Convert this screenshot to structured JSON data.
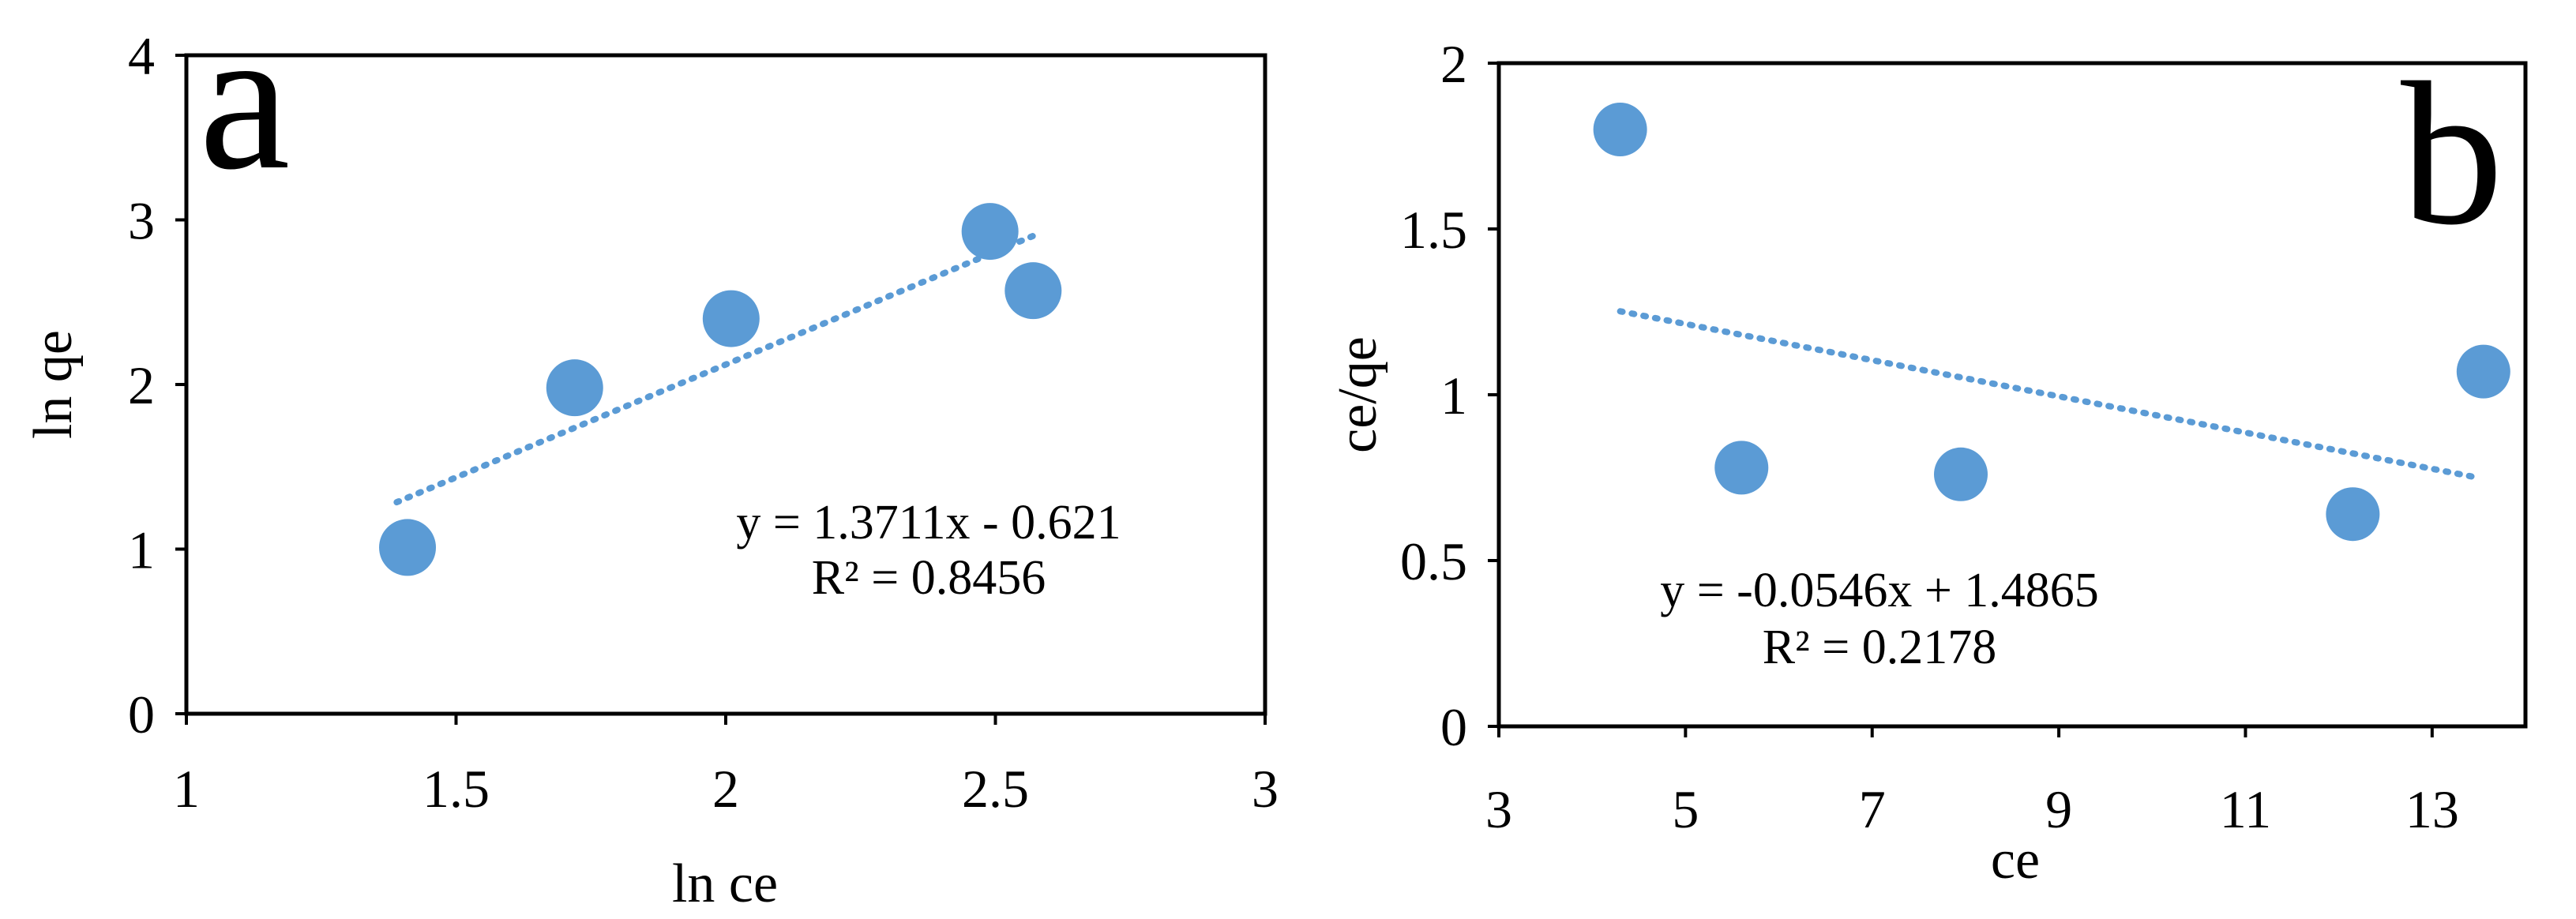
{
  "chart_data": [
    {
      "panel_label": "a",
      "type": "scatter",
      "xlabel": "ln ce",
      "ylabel": "ln qe",
      "xlim": [
        1,
        3
      ],
      "ylim": [
        0,
        4
      ],
      "x_ticks": [
        "1",
        "1.5",
        "2",
        "2.5",
        "3"
      ],
      "y_ticks": [
        "0",
        "1",
        "2",
        "3",
        "4"
      ],
      "grid": false,
      "points": [
        {
          "x": 1.41,
          "y": 1.01
        },
        {
          "x": 1.72,
          "y": 1.98
        },
        {
          "x": 2.01,
          "y": 2.4
        },
        {
          "x": 2.49,
          "y": 2.93
        },
        {
          "x": 2.57,
          "y": 2.57
        }
      ],
      "trendline": {
        "style": "dotted",
        "slope": 1.3711,
        "intercept": -0.621,
        "x_range": [
          1.39,
          2.57
        ]
      },
      "equation": "y = 1.3711x - 0.621",
      "r_squared": "R² = 0.8456",
      "marker_color": "#5B9BD5"
    },
    {
      "panel_label": "b",
      "type": "scatter",
      "xlabel": "ce",
      "ylabel": "ce/qe",
      "xlim": [
        3,
        14
      ],
      "ylim": [
        0,
        2
      ],
      "x_ticks": [
        "3",
        "5",
        "7",
        "9",
        "11",
        "13"
      ],
      "y_ticks": [
        "0",
        "0.5",
        "1",
        "1.5",
        "2"
      ],
      "grid": false,
      "points": [
        {
          "x": 4.3,
          "y": 1.8
        },
        {
          "x": 5.6,
          "y": 0.78
        },
        {
          "x": 7.95,
          "y": 0.76
        },
        {
          "x": 12.15,
          "y": 0.64
        },
        {
          "x": 13.55,
          "y": 1.07
        }
      ],
      "trendline": {
        "style": "dotted",
        "slope": -0.0546,
        "intercept": 1.4865,
        "x_range": [
          4.3,
          13.5
        ]
      },
      "equation": "y = -0.0546x + 1.4865",
      "r_squared": "R² = 0.2178",
      "marker_color": "#5B9BD5"
    }
  ]
}
